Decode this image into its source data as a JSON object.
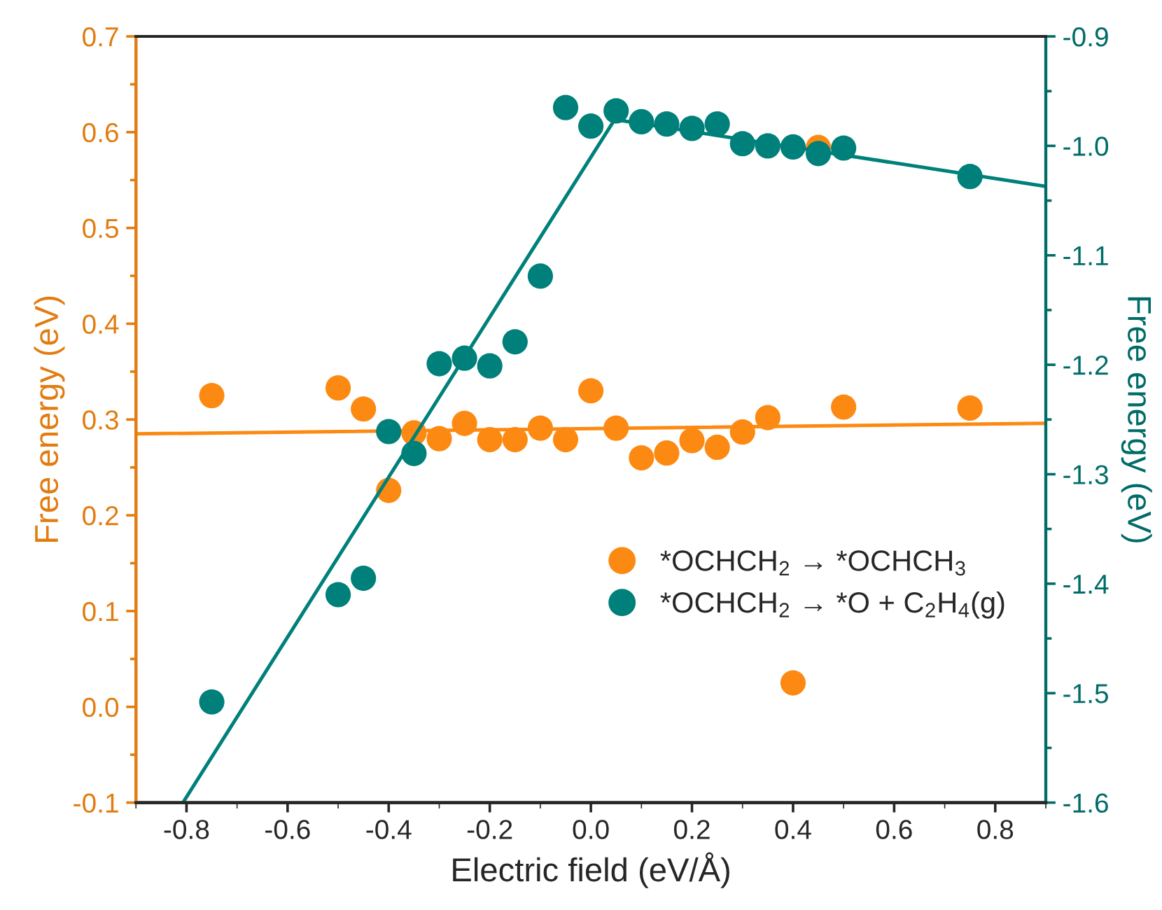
{
  "chart_data": {
    "type": "scatter",
    "xlabel": "Electric field (eV/Å)",
    "ylabel": "Free energy (eV)",
    "y2label": "Free energy (eV)",
    "xlim": [
      -0.9,
      0.9
    ],
    "xticks": [
      {
        "value": -0.8,
        "label": "-0.8"
      },
      {
        "value": -0.6,
        "label": "-0.6"
      },
      {
        "value": -0.4,
        "label": "-0.4"
      },
      {
        "value": -0.2,
        "label": "-0.2"
      },
      {
        "value": 0.0,
        "label": "0.0"
      },
      {
        "value": 0.2,
        "label": "0.2"
      },
      {
        "value": 0.4,
        "label": "0.4"
      },
      {
        "value": 0.6,
        "label": "0.6"
      },
      {
        "value": 0.8,
        "label": "0.8"
      }
    ],
    "ylim": [
      -0.1,
      0.7
    ],
    "yticks": [
      {
        "value": -0.1,
        "label": "-0.1"
      },
      {
        "value": 0.0,
        "label": "0.0"
      },
      {
        "value": 0.1,
        "label": "0.1"
      },
      {
        "value": 0.2,
        "label": "0.2"
      },
      {
        "value": 0.3,
        "label": "0.3"
      },
      {
        "value": 0.4,
        "label": "0.4"
      },
      {
        "value": 0.5,
        "label": "0.5"
      },
      {
        "value": 0.6,
        "label": "0.6"
      },
      {
        "value": 0.7,
        "label": "0.7"
      }
    ],
    "y2lim": [
      -1.6,
      -0.9
    ],
    "y2ticks": [
      {
        "value": -1.6,
        "label": "-1.6"
      },
      {
        "value": -1.5,
        "label": "-1.5"
      },
      {
        "value": -1.4,
        "label": "-1.4"
      },
      {
        "value": -1.3,
        "label": "-1.3"
      },
      {
        "value": -1.2,
        "label": "-1.2"
      },
      {
        "value": -1.1,
        "label": "-1.1"
      },
      {
        "value": -1.0,
        "label": "-1.0"
      },
      {
        "value": -0.9,
        "label": "-0.9"
      }
    ],
    "grid": false,
    "legend": "right",
    "marker": "circle",
    "series": [
      {
        "name": "*OCHCH$_{2}$ → *OCHCH$_{3}$",
        "color": "#fc8a12",
        "axis": "y",
        "x": [
          -0.75,
          -0.5,
          -0.45,
          -0.4,
          -0.35,
          -0.3,
          -0.25,
          -0.2,
          -0.15,
          -0.1,
          -0.05,
          0.0,
          0.05,
          0.1,
          0.15,
          0.2,
          0.25,
          0.3,
          0.35,
          0.4,
          0.45,
          0.5,
          0.75
        ],
        "values": [
          0.325,
          0.333,
          0.311,
          0.226,
          0.286,
          0.28,
          0.296,
          0.279,
          0.279,
          0.291,
          0.279,
          0.33,
          0.291,
          0.26,
          0.265,
          0.278,
          0.271,
          0.287,
          0.302,
          0.025,
          0.584,
          0.313,
          0.312
        ]
      },
      {
        "type": "line",
        "color": "#fc8a12",
        "axis": "y",
        "marker": "none",
        "x": [
          -0.9,
          0.9
        ],
        "values": [
          0.285,
          0.296
        ]
      },
      {
        "name": "*OCHCH$_{2}$ → *O + C$_{2}$H$_{4}$(g)",
        "color": "#00807a",
        "axis": "y2",
        "x": [
          -0.75,
          -0.5,
          -0.45,
          -0.4,
          -0.35,
          -0.3,
          -0.25,
          -0.2,
          -0.15,
          -0.1,
          -0.05,
          0.0,
          0.05,
          0.1,
          0.15,
          0.2,
          0.25,
          0.3,
          0.35,
          0.4,
          0.45,
          0.5,
          0.75
        ],
        "values": [
          -1.508,
          -1.41,
          -1.395,
          -1.261,
          -1.281,
          -1.199,
          -1.194,
          -1.201,
          -1.179,
          -1.119,
          -0.965,
          -0.982,
          -0.968,
          -0.978,
          -0.98,
          -0.984,
          -0.98,
          -0.998,
          -1.0,
          -1.001,
          -1.007,
          -1.002,
          -1.028
        ]
      },
      {
        "type": "line",
        "color": "#00807a",
        "axis": "y2",
        "marker": "none",
        "x": [
          -0.807,
          0.047,
          0.9
        ],
        "values": [
          -1.6,
          -0.976,
          -1.037
        ]
      }
    ]
  }
}
